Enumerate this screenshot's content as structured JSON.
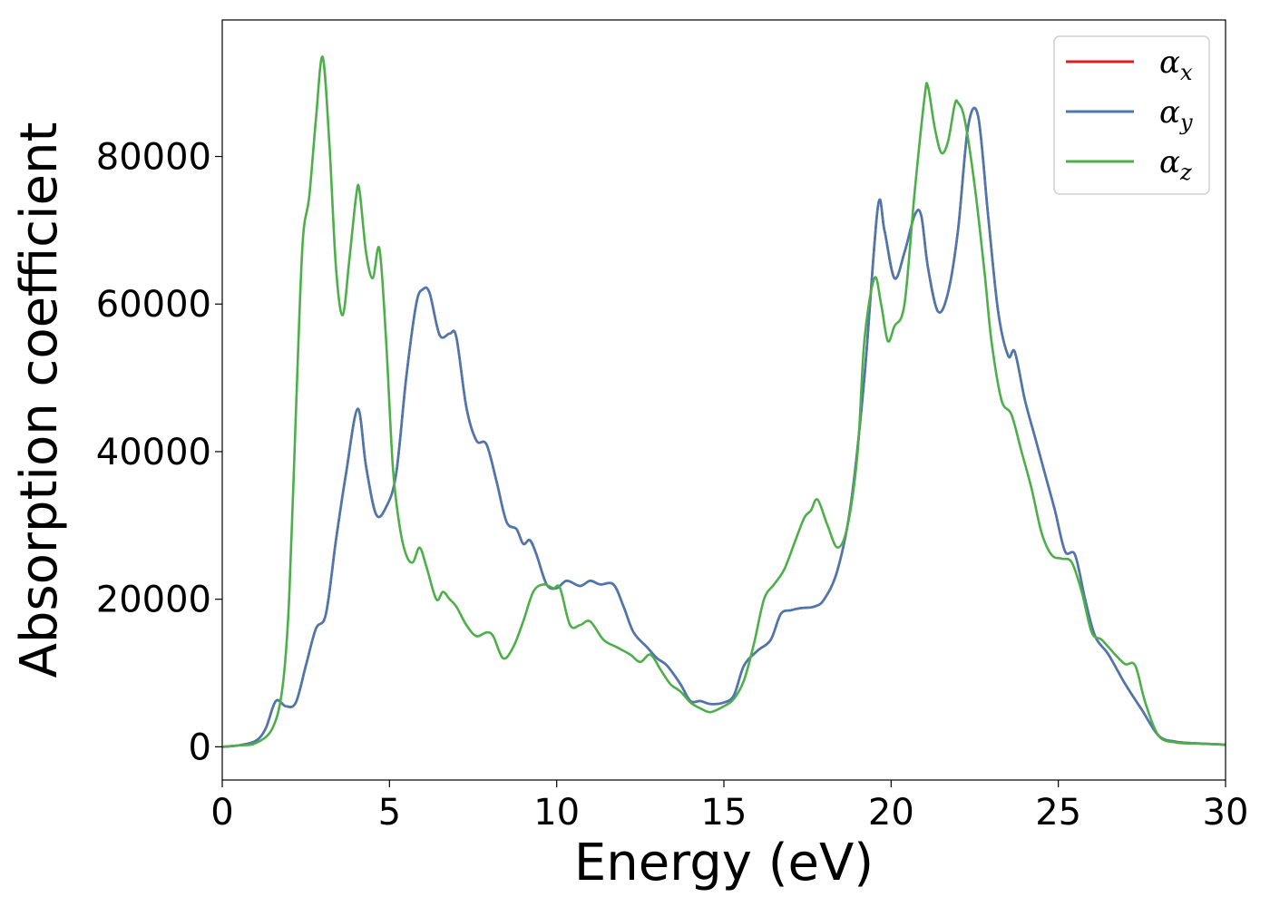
{
  "chart_data": {
    "type": "line",
    "title": "",
    "xlabel": "Energy (eV)",
    "ylabel": "Absorption coefficient",
    "xlim": [
      0,
      30
    ],
    "ylim": [
      -4500,
      98500
    ],
    "grid": false,
    "legend_position": "top-right",
    "x_ticks": [
      0,
      5,
      10,
      15,
      20,
      25,
      30
    ],
    "x_tick_labels": [
      "0",
      "5",
      "10",
      "15",
      "20",
      "25",
      "30"
    ],
    "y_ticks": [
      0,
      20000,
      40000,
      60000,
      80000
    ],
    "y_tick_labels": [
      "0",
      "20000",
      "40000",
      "60000",
      "80000"
    ],
    "series": [
      {
        "name": "α",
        "subscript": "x",
        "color": "#e41a1c",
        "points": [
          [
            0,
            0
          ],
          [
            0.5,
            200
          ],
          [
            1.0,
            800
          ],
          [
            1.3,
            2500
          ],
          [
            1.6,
            6200
          ],
          [
            1.9,
            5500
          ],
          [
            2.2,
            6000
          ],
          [
            2.5,
            11000
          ],
          [
            2.8,
            16000
          ],
          [
            3.1,
            18000
          ],
          [
            3.4,
            28000
          ],
          [
            3.7,
            37000
          ],
          [
            4.05,
            45800
          ],
          [
            4.3,
            38000
          ],
          [
            4.6,
            31500
          ],
          [
            4.9,
            32500
          ],
          [
            5.2,
            37000
          ],
          [
            5.5,
            50000
          ],
          [
            5.8,
            60000
          ],
          [
            6.0,
            62000
          ],
          [
            6.2,
            61500
          ],
          [
            6.5,
            55800
          ],
          [
            6.8,
            56000
          ],
          [
            7.0,
            55500
          ],
          [
            7.3,
            46000
          ],
          [
            7.6,
            41500
          ],
          [
            7.9,
            41000
          ],
          [
            8.2,
            36000
          ],
          [
            8.5,
            30500
          ],
          [
            8.8,
            29500
          ],
          [
            9.0,
            27500
          ],
          [
            9.2,
            28000
          ],
          [
            9.4,
            26000
          ],
          [
            9.7,
            22000
          ],
          [
            10.0,
            21500
          ],
          [
            10.3,
            22500
          ],
          [
            10.7,
            21800
          ],
          [
            11.0,
            22500
          ],
          [
            11.3,
            22000
          ],
          [
            11.7,
            22000
          ],
          [
            12.0,
            19000
          ],
          [
            12.3,
            15500
          ],
          [
            12.7,
            13500
          ],
          [
            13.0,
            12000
          ],
          [
            13.3,
            11000
          ],
          [
            13.7,
            8500
          ],
          [
            14.0,
            6200
          ],
          [
            14.3,
            6200
          ],
          [
            14.6,
            5800
          ],
          [
            15.0,
            6000
          ],
          [
            15.3,
            7000
          ],
          [
            15.6,
            11000
          ],
          [
            16.0,
            13000
          ],
          [
            16.4,
            14500
          ],
          [
            16.7,
            18000
          ],
          [
            17.0,
            18500
          ],
          [
            17.3,
            18800
          ],
          [
            17.7,
            19000
          ],
          [
            18.0,
            20000
          ],
          [
            18.4,
            24000
          ],
          [
            18.8,
            33000
          ],
          [
            19.2,
            50000
          ],
          [
            19.6,
            73000
          ],
          [
            19.8,
            70000
          ],
          [
            20.1,
            63500
          ],
          [
            20.4,
            67000
          ],
          [
            20.7,
            72000
          ],
          [
            20.9,
            72000
          ],
          [
            21.1,
            65000
          ],
          [
            21.4,
            59000
          ],
          [
            21.7,
            61500
          ],
          [
            22.0,
            70000
          ],
          [
            22.3,
            84000
          ],
          [
            22.6,
            85500
          ],
          [
            22.9,
            72000
          ],
          [
            23.2,
            59000
          ],
          [
            23.5,
            53000
          ],
          [
            23.7,
            53500
          ],
          [
            24.0,
            47000
          ],
          [
            24.3,
            42000
          ],
          [
            24.6,
            37000
          ],
          [
            24.9,
            32000
          ],
          [
            25.2,
            26500
          ],
          [
            25.5,
            26000
          ],
          [
            25.8,
            20000
          ],
          [
            26.1,
            15000
          ],
          [
            26.5,
            12500
          ],
          [
            27.0,
            8500
          ],
          [
            27.5,
            5000
          ],
          [
            28.0,
            1500
          ],
          [
            28.5,
            700
          ],
          [
            29.0,
            500
          ],
          [
            30.0,
            300
          ]
        ]
      },
      {
        "name": "α",
        "subscript": "y",
        "color": "#4a78b0",
        "points": [
          [
            0,
            0
          ],
          [
            0.5,
            200
          ],
          [
            1.0,
            800
          ],
          [
            1.3,
            2500
          ],
          [
            1.6,
            6200
          ],
          [
            1.9,
            5500
          ],
          [
            2.2,
            6000
          ],
          [
            2.5,
            11000
          ],
          [
            2.8,
            16000
          ],
          [
            3.1,
            18000
          ],
          [
            3.4,
            28000
          ],
          [
            3.7,
            37000
          ],
          [
            4.05,
            45800
          ],
          [
            4.3,
            38000
          ],
          [
            4.6,
            31500
          ],
          [
            4.9,
            32500
          ],
          [
            5.2,
            37000
          ],
          [
            5.5,
            50000
          ],
          [
            5.8,
            60000
          ],
          [
            6.0,
            62000
          ],
          [
            6.2,
            61500
          ],
          [
            6.5,
            55800
          ],
          [
            6.8,
            56000
          ],
          [
            7.0,
            55500
          ],
          [
            7.3,
            46000
          ],
          [
            7.6,
            41500
          ],
          [
            7.9,
            41000
          ],
          [
            8.2,
            36000
          ],
          [
            8.5,
            30500
          ],
          [
            8.8,
            29500
          ],
          [
            9.0,
            27500
          ],
          [
            9.2,
            28000
          ],
          [
            9.4,
            26000
          ],
          [
            9.7,
            22000
          ],
          [
            10.0,
            21500
          ],
          [
            10.3,
            22500
          ],
          [
            10.7,
            21800
          ],
          [
            11.0,
            22500
          ],
          [
            11.3,
            22000
          ],
          [
            11.7,
            22000
          ],
          [
            12.0,
            19000
          ],
          [
            12.3,
            15500
          ],
          [
            12.7,
            13500
          ],
          [
            13.0,
            12000
          ],
          [
            13.3,
            11000
          ],
          [
            13.7,
            8500
          ],
          [
            14.0,
            6200
          ],
          [
            14.3,
            6200
          ],
          [
            14.6,
            5800
          ],
          [
            15.0,
            6000
          ],
          [
            15.3,
            7000
          ],
          [
            15.6,
            11000
          ],
          [
            16.0,
            13000
          ],
          [
            16.4,
            14500
          ],
          [
            16.7,
            18000
          ],
          [
            17.0,
            18500
          ],
          [
            17.3,
            18800
          ],
          [
            17.7,
            19000
          ],
          [
            18.0,
            20000
          ],
          [
            18.4,
            24000
          ],
          [
            18.8,
            33000
          ],
          [
            19.2,
            50000
          ],
          [
            19.6,
            73000
          ],
          [
            19.8,
            70000
          ],
          [
            20.1,
            63500
          ],
          [
            20.4,
            67000
          ],
          [
            20.7,
            72000
          ],
          [
            20.9,
            72000
          ],
          [
            21.1,
            65000
          ],
          [
            21.4,
            59000
          ],
          [
            21.7,
            61500
          ],
          [
            22.0,
            70000
          ],
          [
            22.3,
            84000
          ],
          [
            22.6,
            85500
          ],
          [
            22.9,
            72000
          ],
          [
            23.2,
            59000
          ],
          [
            23.5,
            53000
          ],
          [
            23.7,
            53500
          ],
          [
            24.0,
            47000
          ],
          [
            24.3,
            42000
          ],
          [
            24.6,
            37000
          ],
          [
            24.9,
            32000
          ],
          [
            25.2,
            26500
          ],
          [
            25.5,
            26000
          ],
          [
            25.8,
            20000
          ],
          [
            26.1,
            15000
          ],
          [
            26.5,
            12500
          ],
          [
            27.0,
            8500
          ],
          [
            27.5,
            5000
          ],
          [
            28.0,
            1500
          ],
          [
            28.5,
            700
          ],
          [
            29.0,
            500
          ],
          [
            30.0,
            300
          ]
        ]
      },
      {
        "name": "α",
        "subscript": "z",
        "color": "#4daf4a",
        "points": [
          [
            0,
            0
          ],
          [
            0.5,
            200
          ],
          [
            1.0,
            500
          ],
          [
            1.5,
            2500
          ],
          [
            1.8,
            8000
          ],
          [
            2.0,
            20000
          ],
          [
            2.2,
            45000
          ],
          [
            2.4,
            68000
          ],
          [
            2.6,
            74500
          ],
          [
            2.8,
            85000
          ],
          [
            3.0,
            93500
          ],
          [
            3.2,
            82000
          ],
          [
            3.4,
            65000
          ],
          [
            3.6,
            58500
          ],
          [
            3.8,
            66000
          ],
          [
            4.0,
            74500
          ],
          [
            4.1,
            75500
          ],
          [
            4.3,
            67000
          ],
          [
            4.5,
            63500
          ],
          [
            4.7,
            67500
          ],
          [
            4.9,
            55000
          ],
          [
            5.1,
            38000
          ],
          [
            5.3,
            30000
          ],
          [
            5.5,
            26000
          ],
          [
            5.7,
            25000
          ],
          [
            5.9,
            27000
          ],
          [
            6.1,
            24500
          ],
          [
            6.4,
            20000
          ],
          [
            6.6,
            21000
          ],
          [
            6.8,
            20000
          ],
          [
            7.0,
            19000
          ],
          [
            7.3,
            16500
          ],
          [
            7.6,
            15000
          ],
          [
            7.9,
            15500
          ],
          [
            8.1,
            15000
          ],
          [
            8.4,
            12000
          ],
          [
            8.7,
            13500
          ],
          [
            9.0,
            17000
          ],
          [
            9.3,
            21000
          ],
          [
            9.6,
            22000
          ],
          [
            9.9,
            21500
          ],
          [
            10.1,
            21500
          ],
          [
            10.4,
            16500
          ],
          [
            10.7,
            16500
          ],
          [
            11.0,
            17000
          ],
          [
            11.4,
            14500
          ],
          [
            11.8,
            13500
          ],
          [
            12.2,
            12500
          ],
          [
            12.5,
            11500
          ],
          [
            12.8,
            12500
          ],
          [
            13.1,
            10500
          ],
          [
            13.4,
            8500
          ],
          [
            13.7,
            7500
          ],
          [
            14.0,
            6000
          ],
          [
            14.3,
            5200
          ],
          [
            14.6,
            4700
          ],
          [
            15.0,
            5500
          ],
          [
            15.3,
            6500
          ],
          [
            15.6,
            9000
          ],
          [
            15.9,
            14000
          ],
          [
            16.2,
            20000
          ],
          [
            16.5,
            22000
          ],
          [
            16.8,
            24000
          ],
          [
            17.1,
            27500
          ],
          [
            17.4,
            31000
          ],
          [
            17.6,
            32000
          ],
          [
            17.8,
            33500
          ],
          [
            18.1,
            30000
          ],
          [
            18.4,
            27000
          ],
          [
            18.7,
            30000
          ],
          [
            19.0,
            40000
          ],
          [
            19.2,
            55000
          ],
          [
            19.5,
            63500
          ],
          [
            19.7,
            60000
          ],
          [
            19.9,
            55000
          ],
          [
            20.1,
            57000
          ],
          [
            20.4,
            60000
          ],
          [
            20.7,
            75000
          ],
          [
            21.0,
            88000
          ],
          [
            21.1,
            89500
          ],
          [
            21.3,
            84000
          ],
          [
            21.5,
            80500
          ],
          [
            21.7,
            82000
          ],
          [
            21.9,
            87000
          ],
          [
            22.0,
            87300
          ],
          [
            22.2,
            85000
          ],
          [
            22.5,
            76000
          ],
          [
            22.8,
            64000
          ],
          [
            23.0,
            55000
          ],
          [
            23.3,
            47000
          ],
          [
            23.6,
            45000
          ],
          [
            23.9,
            40000
          ],
          [
            24.2,
            35000
          ],
          [
            24.5,
            29000
          ],
          [
            24.8,
            26000
          ],
          [
            25.1,
            25500
          ],
          [
            25.4,
            25000
          ],
          [
            25.7,
            21000
          ],
          [
            26.0,
            15500
          ],
          [
            26.3,
            14500
          ],
          [
            26.7,
            12500
          ],
          [
            27.0,
            11200
          ],
          [
            27.3,
            11000
          ],
          [
            27.6,
            6000
          ],
          [
            28.0,
            1500
          ],
          [
            28.5,
            600
          ],
          [
            29.0,
            450
          ],
          [
            30.0,
            300
          ]
        ]
      }
    ]
  }
}
